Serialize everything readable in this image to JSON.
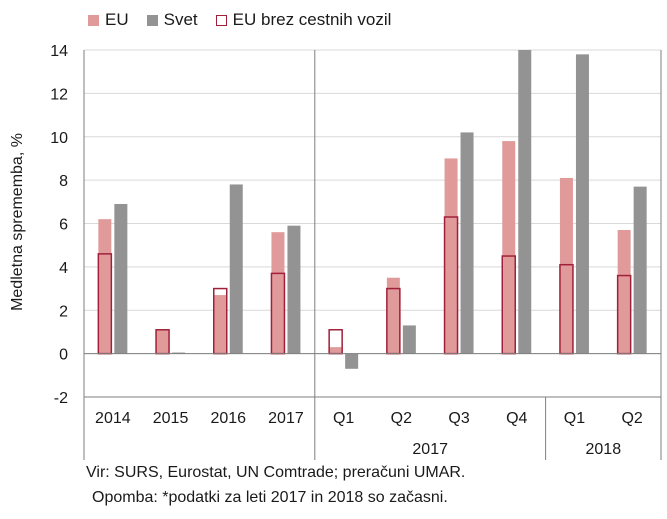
{
  "chart_data": {
    "type": "bar",
    "ylabel": "Medletna sprememba, %",
    "ylim": [
      -2,
      14
    ],
    "yticks": [
      -2,
      0,
      2,
      4,
      6,
      8,
      10,
      12,
      14
    ],
    "categories": [
      "2014",
      "2015",
      "2016",
      "2017",
      "Q1",
      "Q2",
      "Q3",
      "Q4",
      "Q1",
      "Q2"
    ],
    "group_labels": [
      {
        "label": "2017",
        "from": 4,
        "to": 7
      },
      {
        "label": "2018",
        "from": 8,
        "to": 9
      }
    ],
    "series": [
      {
        "name": "EU",
        "values": [
          6.2,
          1.1,
          2.7,
          5.6,
          0.3,
          3.5,
          9.0,
          9.8,
          8.1,
          5.7
        ],
        "color": "#e09a9a"
      },
      {
        "name": "Svet",
        "values": [
          6.9,
          0.05,
          7.8,
          5.9,
          -0.7,
          1.3,
          10.2,
          14.0,
          13.8,
          7.7
        ],
        "color": "#939393"
      },
      {
        "name": "EU brez cestnih vozil",
        "values": [
          4.6,
          1.1,
          3.0,
          3.7,
          1.1,
          3.0,
          6.3,
          4.5,
          4.1,
          3.6
        ],
        "color": "#a0203a"
      }
    ]
  },
  "legend": {
    "eu": "EU",
    "svet": "Svet",
    "eu_brez": "EU brez cestnih vozil"
  },
  "notes": {
    "source": "Vir: SURS, Eurostat, UN Comtrade; preračuni UMAR.",
    "note": "Opomba: *podatki za leti 2017 in 2018 so začasni."
  }
}
